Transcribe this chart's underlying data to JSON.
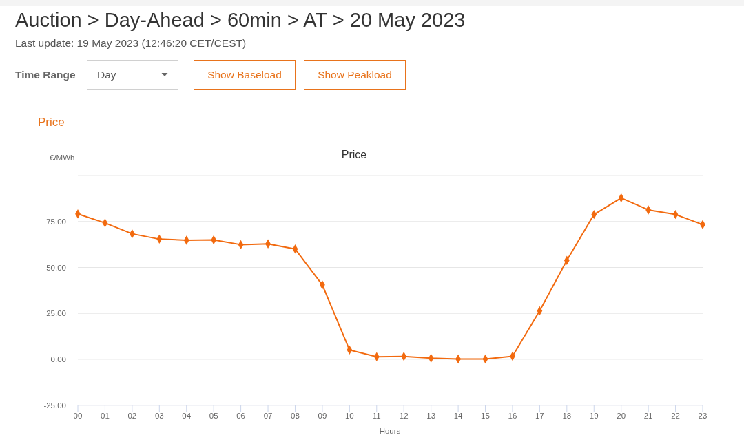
{
  "chart_data": {
    "type": "line",
    "title": "Auction > Day-Ahead > 60min > AT > 20 May 2023",
    "subtitle": "Last update: 19 May 2023 (12:46:20 CET/CEST)",
    "annotations": [
      "Time Range",
      "Day",
      "Show Baseload",
      "Show Peakload",
      "Price",
      "Price"
    ],
    "xlabel": "Hours",
    "ylabel": "€/MWh",
    "categories": [
      "00",
      "01",
      "02",
      "03",
      "04",
      "05",
      "06",
      "07",
      "08",
      "09",
      "10",
      "11",
      "12",
      "13",
      "14",
      "15",
      "16",
      "17",
      "18",
      "19",
      "20",
      "21",
      "22",
      "23"
    ],
    "values": [
      79.1,
      74.2,
      68.3,
      65.4,
      64.8,
      65.0,
      62.4,
      62.8,
      60.0,
      40.5,
      5.1,
      1.4,
      1.6,
      0.6,
      0.2,
      0.2,
      1.7,
      26.4,
      53.8,
      78.8,
      87.8,
      81.3,
      78.8,
      73.3
    ],
    "color": "#f26a0f",
    "ylim": [
      -25,
      100
    ],
    "yticks": [
      {
        "value": -25,
        "label": "-25.00"
      },
      {
        "value": 0,
        "label": "0.00"
      },
      {
        "value": 25,
        "label": "25.00"
      },
      {
        "value": 50,
        "label": "50.00"
      },
      {
        "value": 75,
        "label": "75.00"
      },
      {
        "value": 100,
        "label": null
      }
    ],
    "grid": "y",
    "marker": "diamond",
    "line_style": "solid"
  }
}
